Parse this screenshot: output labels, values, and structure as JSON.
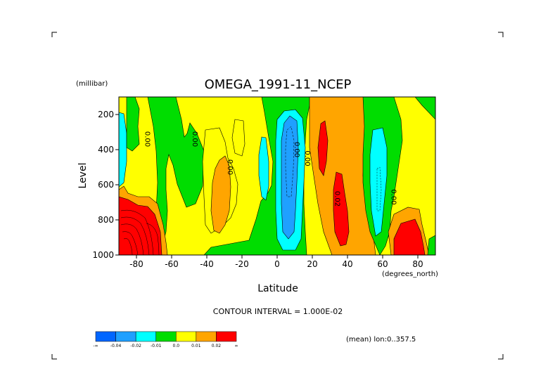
{
  "chart_data": {
    "type": "contour",
    "title": "OMEGA_1991-11_NCEP",
    "xlabel": "Latitude",
    "ylabel": "Level",
    "x_units": "(degrees_north)",
    "y_units": "(millibar)",
    "xlim": [
      -90,
      90
    ],
    "ylim": [
      1000,
      100
    ],
    "x_ticks": [
      -80,
      -60,
      -40,
      -20,
      0,
      20,
      40,
      60,
      80
    ],
    "y_ticks": [
      200,
      400,
      600,
      800,
      1000
    ],
    "contour_interval_text": "CONTOUR INTERVAL = 1.000E-02",
    "averaging_text": "(mean) lon:0..357.5",
    "colorbar": {
      "colors": [
        "#0066ff",
        "#1fa0ff",
        "#00ffff",
        "#00dd00",
        "#ffff00",
        "#ffa500",
        "#ff0000"
      ],
      "labels": [
        "-∞",
        "-0.04",
        "-0.02",
        "-0.01",
        "0.0",
        "0.01",
        "0.02",
        "∞"
      ]
    },
    "contour_labels": [
      {
        "text": "0.00",
        "x": -75,
        "y": 340
      },
      {
        "text": "0.00",
        "x": -48,
        "y": 340
      },
      {
        "text": "0.00",
        "x": -28,
        "y": 500
      },
      {
        "text": "0.00",
        "x": 10,
        "y": 400
      },
      {
        "text": "0.00",
        "x": 16,
        "y": 450
      },
      {
        "text": "0.02",
        "x": 33,
        "y": 680
      },
      {
        "text": "0.00",
        "x": 65,
        "y": 670
      }
    ]
  }
}
